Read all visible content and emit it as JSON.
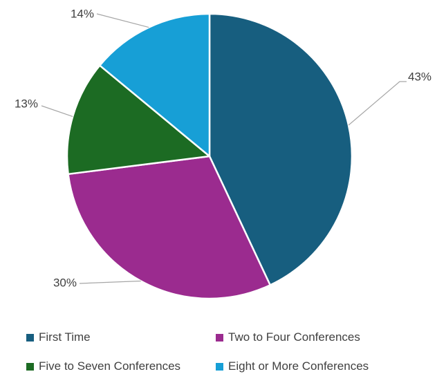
{
  "chart_data": {
    "type": "pie",
    "title": "",
    "start_angle_deg": 0,
    "direction": "clockwise",
    "legend_position": "bottom",
    "slices": [
      {
        "name": "First Time",
        "value": 43,
        "label": "43%",
        "color": "#175e7f"
      },
      {
        "name": "Two to Four Conferences",
        "value": 30,
        "label": "30%",
        "color": "#9b2b8f"
      },
      {
        "name": "Five to Seven Conferences",
        "value": 13,
        "label": "13%",
        "color": "#1c6b23"
      },
      {
        "name": "Eight or More Conferences",
        "value": 14,
        "label": "14%",
        "color": "#179fd6"
      }
    ]
  }
}
